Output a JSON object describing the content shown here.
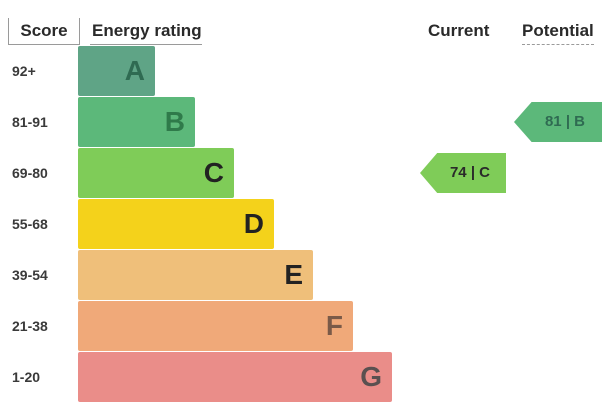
{
  "chart_data": {
    "type": "table",
    "headers": {
      "score": "Score",
      "rating": "Energy rating",
      "current": "Current",
      "potential": "Potential"
    },
    "bands": [
      {
        "range": "92+",
        "letter": "A",
        "color": "#5fa486",
        "letter_color": "#2f6b52"
      },
      {
        "range": "81-91",
        "letter": "B",
        "color": "#5cb87a",
        "letter_color": "#2f7a4a"
      },
      {
        "range": "69-80",
        "letter": "C",
        "color": "#7fcc58",
        "letter_color": "#222222"
      },
      {
        "range": "55-68",
        "letter": "D",
        "color": "#f4d21b",
        "letter_color": "#222222"
      },
      {
        "range": "39-54",
        "letter": "E",
        "color": "#efbf7a",
        "letter_color": "#222222"
      },
      {
        "range": "21-38",
        "letter": "F",
        "color": "#f0a979",
        "letter_color": "#7a5a48"
      },
      {
        "range": "1-20",
        "letter": "G",
        "color": "#ea8d89",
        "letter_color": "#5a5050"
      }
    ],
    "current": {
      "label": "74 | C",
      "score": 74,
      "letter": "C",
      "color": "#7fcc58"
    },
    "potential": {
      "label": "81 | B",
      "score": 81,
      "letter": "B",
      "color": "#5cb87a"
    }
  }
}
